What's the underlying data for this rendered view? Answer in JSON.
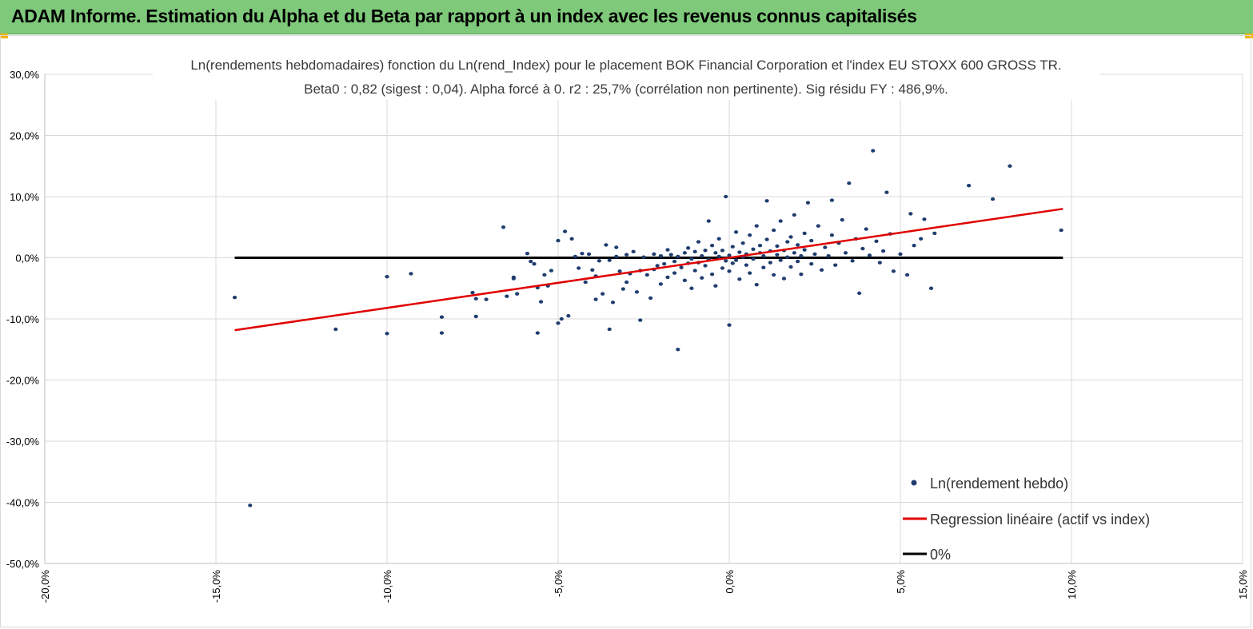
{
  "header": {
    "title": "ADAM Informe. Estimation du Alpha et du Beta par rapport à un index avec les revenus connus capitalisés",
    "color": "#7ec97a"
  },
  "chart_data": {
    "type": "scatter",
    "title": "Ln(rendements hebdomadaires) fonction du Ln(rend_Index) pour le placement BOK Financial Corporation et l'index EU STOXX 600 GROSS TR.",
    "subtitle": "Beta0 : 0,82 (sigest : 0,04). Alpha forcé à 0. r2 : 25,7% (corrélation non pertinente). Sig résidu FY : 486,9%.",
    "xlabel": "",
    "ylabel": "",
    "xlim": [
      -0.2,
      0.15
    ],
    "ylim": [
      -0.5,
      0.3
    ],
    "x_ticks": [
      "-20,0%",
      "-15,0%",
      "-10,0%",
      "-5,0%",
      "0,0%",
      "5,0%",
      "10,0%",
      "15,0%"
    ],
    "y_ticks": [
      "30,0%",
      "20,0%",
      "10,0%",
      "0,0%",
      "-10,0%",
      "-20,0%",
      "-30,0%",
      "-40,0%",
      "-50,0%"
    ],
    "grid": true,
    "legend_position": "bottom-right",
    "series": [
      {
        "name": "Ln(rendement hebdo)",
        "kind": "scatter",
        "color": "#1f3d6e",
        "points": [
          [
            -0.1445,
            -0.065
          ],
          [
            -0.14,
            -0.405
          ],
          [
            -0.115,
            -0.117
          ],
          [
            -0.1,
            -0.031
          ],
          [
            -0.1,
            -0.124
          ],
          [
            -0.093,
            -0.026
          ],
          [
            -0.084,
            -0.123
          ],
          [
            -0.084,
            -0.097
          ],
          [
            -0.075,
            -0.057
          ],
          [
            -0.074,
            -0.067
          ],
          [
            -0.074,
            -0.096
          ],
          [
            -0.071,
            -0.068
          ],
          [
            -0.066,
            0.05
          ],
          [
            -0.065,
            -0.063
          ],
          [
            -0.063,
            -0.034
          ],
          [
            -0.063,
            -0.032
          ],
          [
            -0.062,
            -0.059
          ],
          [
            -0.059,
            0.007
          ],
          [
            -0.058,
            -0.006
          ],
          [
            -0.057,
            -0.01
          ],
          [
            -0.056,
            -0.049
          ],
          [
            -0.056,
            -0.123
          ],
          [
            -0.055,
            -0.072
          ],
          [
            -0.054,
            -0.028
          ],
          [
            -0.053,
            -0.046
          ],
          [
            -0.052,
            -0.021
          ],
          [
            -0.05,
            0.028
          ],
          [
            -0.05,
            -0.107
          ],
          [
            -0.049,
            -0.1
          ],
          [
            -0.048,
            0.043
          ],
          [
            -0.047,
            -0.095
          ],
          [
            -0.046,
            0.031
          ],
          [
            -0.045,
            0.002
          ],
          [
            -0.044,
            -0.017
          ],
          [
            -0.043,
            0.007
          ],
          [
            -0.042,
            -0.04
          ],
          [
            -0.041,
            0.006
          ],
          [
            -0.04,
            -0.02
          ],
          [
            -0.039,
            -0.068
          ],
          [
            -0.039,
            -0.03
          ],
          [
            -0.038,
            -0.005
          ],
          [
            -0.037,
            -0.059
          ],
          [
            -0.036,
            0.021
          ],
          [
            -0.035,
            -0.004
          ],
          [
            -0.035,
            -0.117
          ],
          [
            -0.034,
            -0.073
          ],
          [
            -0.033,
            0.017
          ],
          [
            -0.033,
            0.002
          ],
          [
            -0.032,
            -0.022
          ],
          [
            -0.031,
            -0.051
          ],
          [
            -0.03,
            -0.04
          ],
          [
            -0.03,
            0.005
          ],
          [
            -0.029,
            -0.026
          ],
          [
            -0.028,
            0.01
          ],
          [
            -0.027,
            -0.056
          ],
          [
            -0.026,
            -0.021
          ],
          [
            -0.026,
            -0.102
          ],
          [
            -0.025,
            0.001
          ],
          [
            -0.024,
            -0.028
          ],
          [
            -0.023,
            -0.066
          ],
          [
            -0.022,
            0.006
          ],
          [
            -0.022,
            -0.019
          ],
          [
            -0.021,
            -0.013
          ],
          [
            -0.02,
            0.003
          ],
          [
            -0.02,
            -0.043
          ],
          [
            -0.019,
            -0.01
          ],
          [
            -0.018,
            0.013
          ],
          [
            -0.018,
            -0.032
          ],
          [
            -0.017,
            0.005
          ],
          [
            -0.016,
            -0.006
          ],
          [
            -0.016,
            -0.025
          ],
          [
            -0.015,
            0.002
          ],
          [
            -0.015,
            -0.15
          ],
          [
            -0.014,
            -0.016
          ],
          [
            -0.013,
            0.008
          ],
          [
            -0.013,
            -0.037
          ],
          [
            -0.012,
            -0.009
          ],
          [
            -0.012,
            0.016
          ],
          [
            -0.011,
            -0.002
          ],
          [
            -0.011,
            -0.05
          ],
          [
            -0.01,
            0.01
          ],
          [
            -0.01,
            -0.021
          ],
          [
            -0.009,
            0.026
          ],
          [
            -0.009,
            -0.008
          ],
          [
            -0.008,
            0.003
          ],
          [
            -0.008,
            -0.033
          ],
          [
            -0.007,
            0.012
          ],
          [
            -0.007,
            -0.013
          ],
          [
            -0.006,
            0.06
          ],
          [
            -0.006,
            -0.003
          ],
          [
            -0.005,
            0.02
          ],
          [
            -0.005,
            -0.027
          ],
          [
            -0.004,
            0.008
          ],
          [
            -0.004,
            -0.046
          ],
          [
            -0.003,
            0.002
          ],
          [
            -0.003,
            0.031
          ],
          [
            -0.002,
            -0.017
          ],
          [
            -0.002,
            0.012
          ],
          [
            -0.001,
            -0.005
          ],
          [
            -0.001,
            0.1
          ],
          [
            0.0,
            0.004
          ],
          [
            0.0,
            -0.022
          ],
          [
            0.0,
            -0.11
          ],
          [
            0.001,
            0.018
          ],
          [
            0.001,
            -0.009
          ],
          [
            0.002,
            0.042
          ],
          [
            0.002,
            -0.004
          ],
          [
            0.003,
            0.009
          ],
          [
            0.003,
            -0.035
          ],
          [
            0.004,
            0.001
          ],
          [
            0.004,
            0.024
          ],
          [
            0.005,
            -0.012
          ],
          [
            0.005,
            0.006
          ],
          [
            0.006,
            0.037
          ],
          [
            0.006,
            -0.025
          ],
          [
            0.007,
            0.014
          ],
          [
            0.007,
            -0.002
          ],
          [
            0.008,
            0.052
          ],
          [
            0.008,
            -0.044
          ],
          [
            0.009,
            0.008
          ],
          [
            0.009,
            0.02
          ],
          [
            0.01,
            -0.016
          ],
          [
            0.01,
            0.003
          ],
          [
            0.011,
            0.093
          ],
          [
            0.011,
            0.03
          ],
          [
            0.012,
            -0.008
          ],
          [
            0.012,
            0.011
          ],
          [
            0.013,
            0.045
          ],
          [
            0.013,
            -0.028
          ],
          [
            0.014,
            0.005
          ],
          [
            0.014,
            0.019
          ],
          [
            0.015,
            -0.004
          ],
          [
            0.015,
            0.06
          ],
          [
            0.016,
            0.012
          ],
          [
            0.016,
            -0.034
          ],
          [
            0.017,
            0.026
          ],
          [
            0.017,
            0.001
          ],
          [
            0.018,
            0.034
          ],
          [
            0.018,
            -0.015
          ],
          [
            0.019,
            0.008
          ],
          [
            0.019,
            0.07
          ],
          [
            0.02,
            -0.006
          ],
          [
            0.02,
            0.021
          ],
          [
            0.021,
            0.003
          ],
          [
            0.021,
            -0.027
          ],
          [
            0.022,
            0.04
          ],
          [
            0.022,
            0.013
          ],
          [
            0.023,
            0.09
          ],
          [
            0.024,
            -0.01
          ],
          [
            0.024,
            0.028
          ],
          [
            0.025,
            0.006
          ],
          [
            0.026,
            0.052
          ],
          [
            0.027,
            -0.02
          ],
          [
            0.028,
            0.017
          ],
          [
            0.029,
            0.003
          ],
          [
            0.03,
            0.037
          ],
          [
            0.03,
            0.094
          ],
          [
            0.031,
            -0.012
          ],
          [
            0.032,
            0.024
          ],
          [
            0.033,
            0.062
          ],
          [
            0.034,
            0.008
          ],
          [
            0.035,
            0.122
          ],
          [
            0.036,
            -0.005
          ],
          [
            0.037,
            0.031
          ],
          [
            0.038,
            -0.058
          ],
          [
            0.039,
            0.015
          ],
          [
            0.04,
            0.047
          ],
          [
            0.041,
            0.004
          ],
          [
            0.042,
            0.175
          ],
          [
            0.043,
            0.027
          ],
          [
            0.044,
            -0.008
          ],
          [
            0.045,
            0.011
          ],
          [
            0.046,
            0.107
          ],
          [
            0.047,
            0.039
          ],
          [
            0.048,
            -0.022
          ],
          [
            0.05,
            0.006
          ],
          [
            0.052,
            -0.028
          ],
          [
            0.053,
            0.072
          ],
          [
            0.054,
            0.02
          ],
          [
            0.056,
            0.031
          ],
          [
            0.057,
            0.063
          ],
          [
            0.059,
            -0.05
          ],
          [
            0.06,
            0.04
          ],
          [
            0.07,
            0.118
          ],
          [
            0.077,
            0.096
          ],
          [
            0.082,
            0.15
          ],
          [
            0.097,
            0.045
          ]
        ]
      },
      {
        "name": "Regression linéaire (actif vs index)",
        "kind": "line",
        "color": "#e00000",
        "x": [
          -0.1445,
          0.0975
        ],
        "y": [
          -0.1185,
          0.08
        ]
      },
      {
        "name": "0%",
        "kind": "line",
        "color": "#000000",
        "x": [
          -0.1445,
          0.0975
        ],
        "y": [
          0.0,
          0.0
        ]
      }
    ]
  }
}
